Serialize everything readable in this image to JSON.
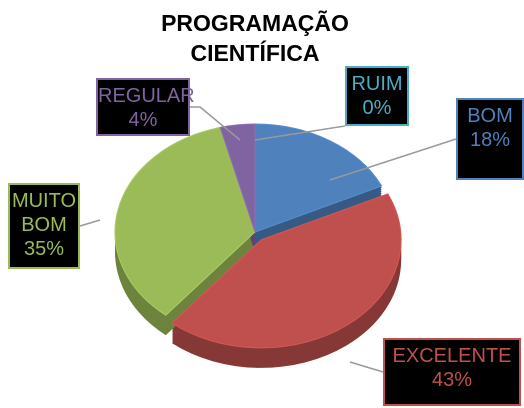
{
  "chart_data": {
    "type": "pie3d",
    "title": "PROGRAMAÇÃO CIENTÍFICA",
    "categories": [
      "RUIM",
      "BOM",
      "EXCELENTE",
      "MUITO BOM",
      "REGULAR"
    ],
    "values": [
      0,
      18,
      43,
      35,
      4
    ],
    "value_labels": [
      "0%",
      "18%",
      "43%",
      "35%",
      "4%"
    ],
    "colors": [
      "#4bacc6",
      "#4f81bd",
      "#c0504d",
      "#9bbb59",
      "#8064a2"
    ]
  }
}
